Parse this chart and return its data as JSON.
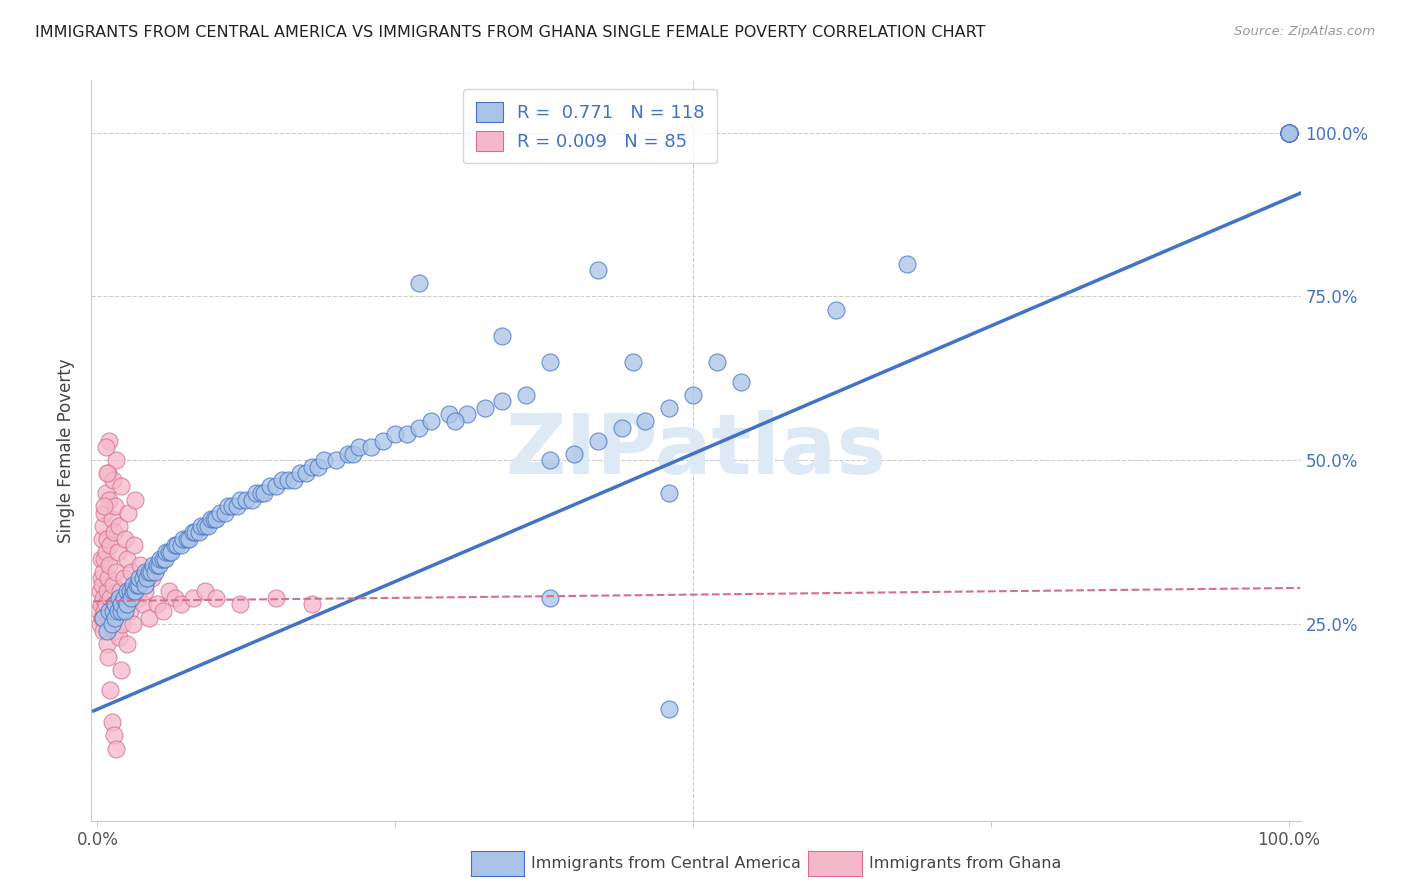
{
  "title": "IMMIGRANTS FROM CENTRAL AMERICA VS IMMIGRANTS FROM GHANA SINGLE FEMALE POVERTY CORRELATION CHART",
  "source": "Source: ZipAtlas.com",
  "ylabel": "Single Female Poverty",
  "legend_label1": "Immigrants from Central America",
  "legend_label2": "Immigrants from Ghana",
  "R1": 0.771,
  "N1": 118,
  "R2": 0.009,
  "N2": 85,
  "color_blue": "#aac4e8",
  "color_pink": "#f5b8cb",
  "color_line_blue": "#4472c4",
  "color_line_pink": "#d4708a",
  "axis_color_blue": "#4472c4",
  "watermark": "ZIPatlas",
  "blue_x": [
    0.005,
    0.008,
    0.01,
    0.012,
    0.013,
    0.015,
    0.015,
    0.017,
    0.018,
    0.02,
    0.02,
    0.022,
    0.023,
    0.025,
    0.025,
    0.027,
    0.028,
    0.03,
    0.03,
    0.032,
    0.033,
    0.035,
    0.035,
    0.038,
    0.04,
    0.04,
    0.042,
    0.043,
    0.045,
    0.047,
    0.048,
    0.05,
    0.052,
    0.053,
    0.055,
    0.057,
    0.058,
    0.06,
    0.062,
    0.065,
    0.067,
    0.07,
    0.072,
    0.075,
    0.077,
    0.08,
    0.082,
    0.085,
    0.087,
    0.09,
    0.093,
    0.095,
    0.098,
    0.1,
    0.103,
    0.107,
    0.11,
    0.113,
    0.117,
    0.12,
    0.125,
    0.13,
    0.133,
    0.137,
    0.14,
    0.145,
    0.15,
    0.155,
    0.16,
    0.165,
    0.17,
    0.175,
    0.18,
    0.185,
    0.19,
    0.2,
    0.21,
    0.215,
    0.22,
    0.23,
    0.24,
    0.25,
    0.26,
    0.27,
    0.28,
    0.295,
    0.31,
    0.325,
    0.34,
    0.36,
    0.38,
    0.4,
    0.42,
    0.44,
    0.46,
    0.48,
    0.5,
    0.52,
    0.54,
    0.48,
    1.0,
    1.0,
    1.0,
    1.0,
    1.0,
    1.0,
    1.0,
    1.0,
    0.62,
    0.68,
    0.45,
    0.38,
    0.48,
    0.3,
    0.27,
    0.34,
    0.42,
    0.38
  ],
  "blue_y": [
    0.26,
    0.24,
    0.27,
    0.25,
    0.27,
    0.26,
    0.28,
    0.27,
    0.29,
    0.27,
    0.28,
    0.29,
    0.27,
    0.3,
    0.28,
    0.3,
    0.29,
    0.3,
    0.31,
    0.3,
    0.31,
    0.31,
    0.32,
    0.32,
    0.31,
    0.33,
    0.32,
    0.33,
    0.33,
    0.34,
    0.33,
    0.34,
    0.34,
    0.35,
    0.35,
    0.35,
    0.36,
    0.36,
    0.36,
    0.37,
    0.37,
    0.37,
    0.38,
    0.38,
    0.38,
    0.39,
    0.39,
    0.39,
    0.4,
    0.4,
    0.4,
    0.41,
    0.41,
    0.41,
    0.42,
    0.42,
    0.43,
    0.43,
    0.43,
    0.44,
    0.44,
    0.44,
    0.45,
    0.45,
    0.45,
    0.46,
    0.46,
    0.47,
    0.47,
    0.47,
    0.48,
    0.48,
    0.49,
    0.49,
    0.5,
    0.5,
    0.51,
    0.51,
    0.52,
    0.52,
    0.53,
    0.54,
    0.54,
    0.55,
    0.56,
    0.57,
    0.57,
    0.58,
    0.59,
    0.6,
    0.5,
    0.51,
    0.53,
    0.55,
    0.56,
    0.58,
    0.6,
    0.65,
    0.62,
    0.12,
    1.0,
    1.0,
    1.0,
    1.0,
    1.0,
    1.0,
    1.0,
    1.0,
    0.73,
    0.8,
    0.65,
    0.29,
    0.45,
    0.56,
    0.77,
    0.69,
    0.79,
    0.65
  ],
  "pink_x": [
    0.001,
    0.002,
    0.002,
    0.003,
    0.003,
    0.003,
    0.004,
    0.004,
    0.004,
    0.005,
    0.005,
    0.005,
    0.005,
    0.006,
    0.006,
    0.006,
    0.007,
    0.007,
    0.007,
    0.008,
    0.008,
    0.008,
    0.009,
    0.009,
    0.01,
    0.01,
    0.01,
    0.011,
    0.011,
    0.012,
    0.012,
    0.013,
    0.013,
    0.014,
    0.014,
    0.015,
    0.015,
    0.016,
    0.016,
    0.017,
    0.017,
    0.018,
    0.018,
    0.019,
    0.02,
    0.02,
    0.021,
    0.022,
    0.023,
    0.024,
    0.025,
    0.026,
    0.027,
    0.028,
    0.03,
    0.031,
    0.032,
    0.034,
    0.036,
    0.038,
    0.04,
    0.043,
    0.046,
    0.05,
    0.055,
    0.06,
    0.065,
    0.07,
    0.08,
    0.09,
    0.1,
    0.12,
    0.15,
    0.18,
    0.01,
    0.008,
    0.006,
    0.007,
    0.009,
    0.011,
    0.012,
    0.014,
    0.016,
    0.02,
    0.025
  ],
  "pink_y": [
    0.27,
    0.3,
    0.25,
    0.32,
    0.28,
    0.35,
    0.26,
    0.31,
    0.38,
    0.29,
    0.33,
    0.4,
    0.24,
    0.27,
    0.35,
    0.42,
    0.28,
    0.36,
    0.45,
    0.3,
    0.38,
    0.22,
    0.32,
    0.48,
    0.26,
    0.34,
    0.44,
    0.29,
    0.37,
    0.25,
    0.41,
    0.31,
    0.47,
    0.28,
    0.39,
    0.24,
    0.43,
    0.33,
    0.5,
    0.27,
    0.36,
    0.23,
    0.4,
    0.3,
    0.28,
    0.46,
    0.25,
    0.32,
    0.38,
    0.29,
    0.35,
    0.42,
    0.27,
    0.33,
    0.25,
    0.37,
    0.44,
    0.29,
    0.34,
    0.28,
    0.3,
    0.26,
    0.32,
    0.28,
    0.27,
    0.3,
    0.29,
    0.28,
    0.29,
    0.3,
    0.29,
    0.28,
    0.29,
    0.28,
    0.53,
    0.48,
    0.43,
    0.52,
    0.2,
    0.15,
    0.1,
    0.08,
    0.06,
    0.18,
    0.22
  ]
}
